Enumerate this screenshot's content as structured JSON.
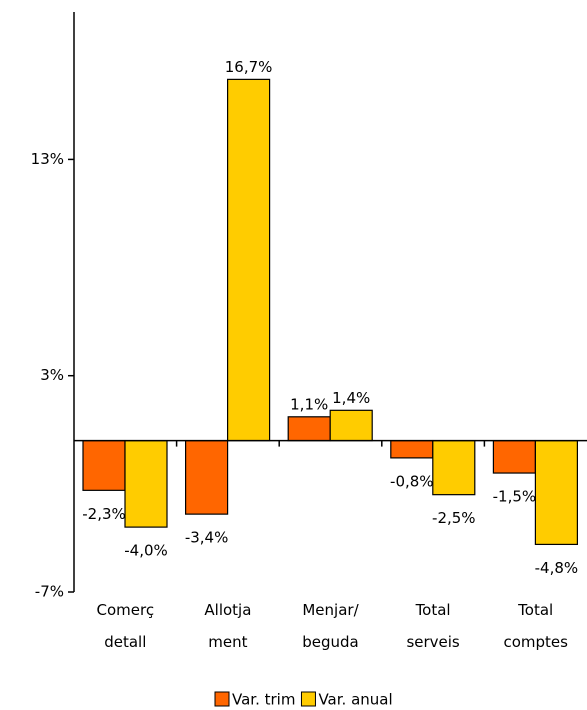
{
  "chart_data": {
    "type": "bar",
    "categories": [
      "Comerç detall",
      "Allotja ment",
      "Menjar/ beguda",
      "Total serveis",
      "Total comptes"
    ],
    "series": [
      {
        "name": "Var. trim",
        "color": "#ff6600",
        "values": [
          -2.3,
          -3.4,
          1.1,
          -0.8,
          -1.5
        ],
        "value_labels": [
          "-2,3%",
          "-3,4%",
          "1,1%",
          "-0,8%",
          "-1,5%"
        ]
      },
      {
        "name": "Var. anual",
        "color": "#ffcc00",
        "values": [
          -4.0,
          16.7,
          1.4,
          -2.5,
          -4.8
        ],
        "value_labels": [
          "-4,0%",
          "16,7%",
          "1,4%",
          "-2,5%",
          "-4,8%"
        ]
      }
    ],
    "ylim": [
      -7,
      20
    ],
    "yticks": [
      {
        "value": -7,
        "label": "-7%"
      },
      {
        "value": 3,
        "label": "3%"
      },
      {
        "value": 13,
        "label": "13%"
      }
    ],
    "legend": "bottom"
  }
}
